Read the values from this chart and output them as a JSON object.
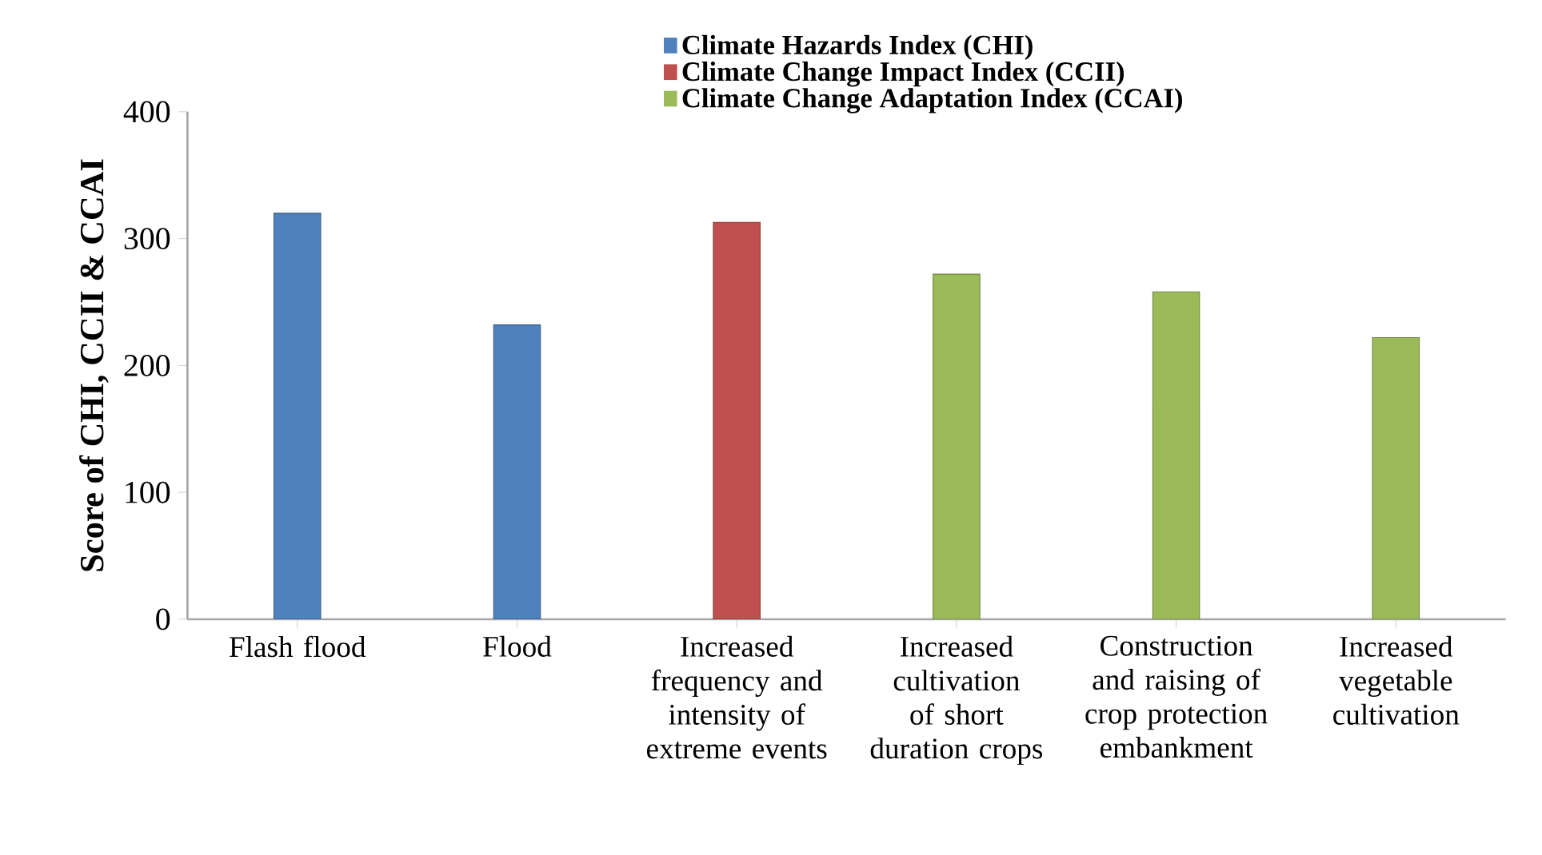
{
  "chart_data": {
    "type": "bar",
    "ylabel": "Score of CHI, CCII & CCAI",
    "categories": [
      "Flash flood",
      "Flood",
      "Increased frequency and intensity of extreme events",
      "Increased cultivation of short duration crops",
      "Construction and raising of crop protection embankment",
      "Increased vegetable cultivation"
    ],
    "series": [
      {
        "name": "Climate Hazards Index (CHI)",
        "color": "#4f81bd",
        "values": [
          320,
          232,
          null,
          null,
          null,
          null
        ]
      },
      {
        "name": "Climate Change Impact Index (CCII)",
        "color": "#c0504d",
        "values": [
          null,
          null,
          313,
          null,
          null,
          null
        ]
      },
      {
        "name": "Climate Change Adaptation Index (CCAI)",
        "color": "#9bbb59",
        "values": [
          null,
          null,
          null,
          272,
          258,
          222
        ]
      }
    ],
    "ylim": [
      0,
      400
    ],
    "yticks": [
      0,
      100,
      200,
      300,
      400
    ],
    "grid": false,
    "legend": "top"
  }
}
